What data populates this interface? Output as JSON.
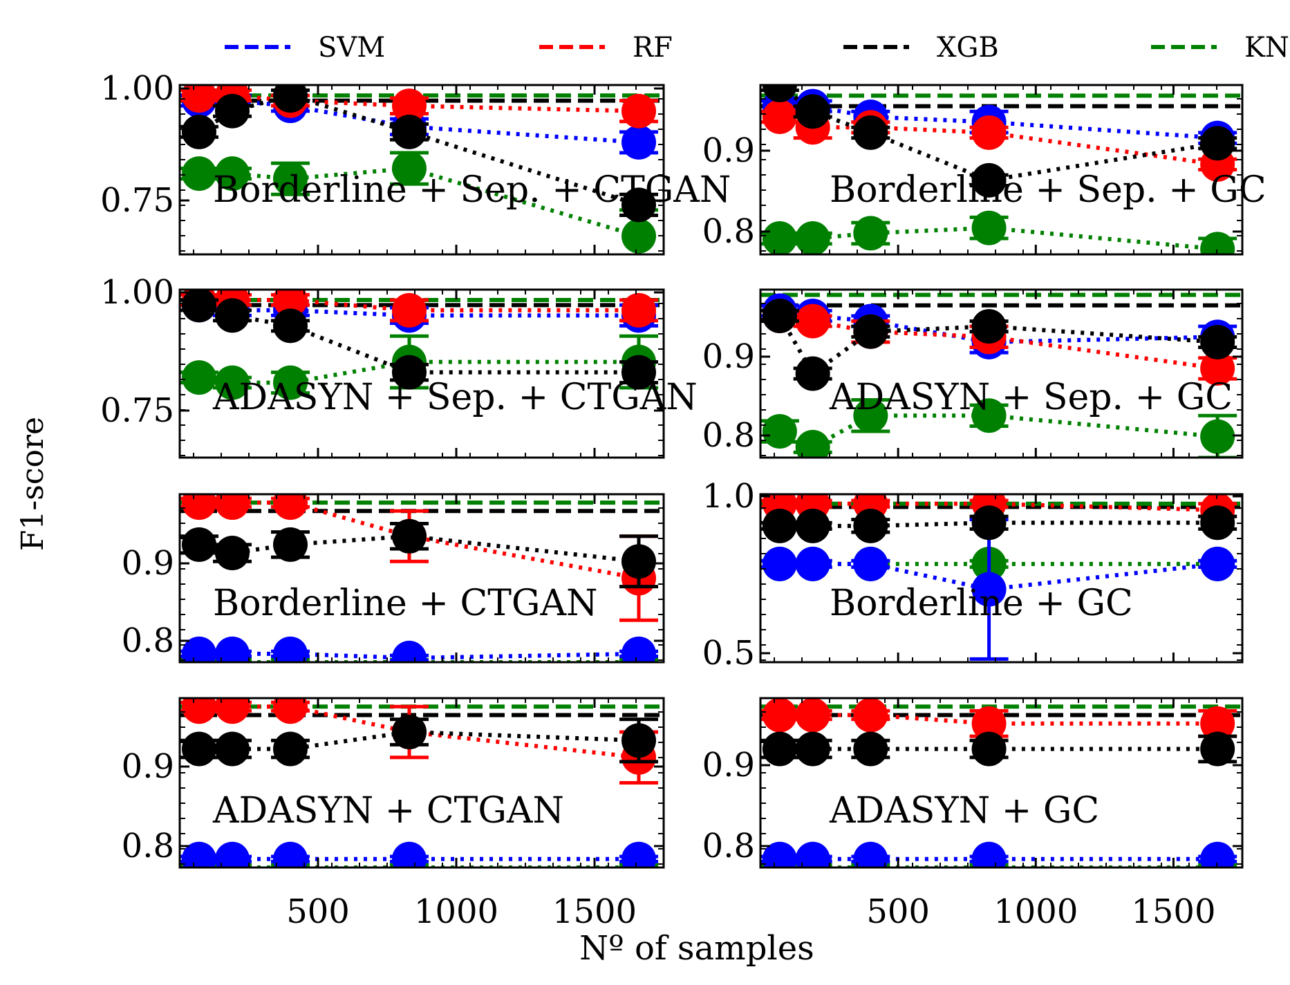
{
  "colors": {
    "SVM": "#0000ff",
    "RF": "#ff0000",
    "XGB": "#000000",
    "KNN": "#008000"
  },
  "legend": {
    "placement": "top-center",
    "items": [
      {
        "label": "SVM",
        "color": "#0000ff"
      },
      {
        "label": "RF",
        "color": "#ff0000"
      },
      {
        "label": "XGB",
        "color": "#000000"
      },
      {
        "label": "KNN",
        "color": "#008000"
      }
    ]
  },
  "ylabel": "F1-score",
  "xlabel": "Nº of samples",
  "chart_data": [
    {
      "type": "line",
      "title": "Borderline + Sep. + CTGAN",
      "xlim": [
        0,
        1750
      ],
      "ylim": [
        0.675,
        1.0
      ],
      "yticks": [
        "1.00",
        "0.75"
      ],
      "x": [
        70,
        190,
        400,
        830,
        1660
      ],
      "baselines": {
        "SVM": 0.97,
        "RF": 0.97,
        "XGB": 0.97,
        "KNN": 0.98
      },
      "series": [
        {
          "name": "SVM",
          "values": [
            0.97,
            0.97,
            0.96,
            0.92,
            0.89
          ],
          "errors": [
            0.01,
            0.01,
            0.01,
            0.015,
            0.02
          ]
        },
        {
          "name": "RF",
          "values": [
            0.98,
            0.98,
            0.97,
            0.96,
            0.95
          ],
          "errors": [
            0.01,
            0.01,
            0.01,
            0.015,
            0.02
          ]
        },
        {
          "name": "XGB",
          "values": [
            0.91,
            0.95,
            0.98,
            0.91,
            0.77
          ],
          "errors": [
            0.01,
            0.01,
            0.01,
            0.015,
            0.02
          ]
        },
        {
          "name": "KNN",
          "values": [
            0.83,
            0.83,
            0.82,
            0.84,
            0.71
          ],
          "errors": [
            0.01,
            0.01,
            0.03,
            0.03,
            0.05
          ]
        }
      ]
    },
    {
      "type": "line",
      "title": "Borderline + Sep. + GC",
      "xlim": [
        0,
        1750
      ],
      "ylim": [
        0.79,
        0.95
      ],
      "yticks": [
        "0.9",
        "0.8"
      ],
      "x": [
        70,
        190,
        400,
        830,
        1660
      ],
      "baselines": {
        "SVM": 0.93,
        "RF": 0.93,
        "XGB": 0.93,
        "KNN": 0.94
      },
      "series": [
        {
          "name": "SVM",
          "values": [
            0.93,
            0.93,
            0.92,
            0.915,
            0.9
          ],
          "errors": [
            0.005,
            0.005,
            0.005,
            0.01,
            0.005
          ]
        },
        {
          "name": "RF",
          "values": [
            0.92,
            0.91,
            0.91,
            0.905,
            0.875
          ],
          "errors": [
            0.005,
            0.01,
            0.005,
            0.005,
            0.005
          ]
        },
        {
          "name": "XGB",
          "values": [
            0.95,
            0.925,
            0.905,
            0.86,
            0.895
          ],
          "errors": [
            0.005,
            0.005,
            0.005,
            0.005,
            0.005
          ]
        },
        {
          "name": "KNN",
          "values": [
            0.805,
            0.805,
            0.81,
            0.815,
            0.795
          ],
          "errors": [
            0.005,
            0.005,
            0.01,
            0.01,
            0.01
          ]
        }
      ]
    },
    {
      "type": "line",
      "title": "ADASYN + Sep. + CTGAN",
      "xlim": [
        0,
        1750
      ],
      "ylim": [
        0.675,
        1.0
      ],
      "yticks": [
        "1.00",
        "0.75"
      ],
      "x": [
        70,
        190,
        400,
        830,
        1660
      ],
      "baselines": {
        "SVM": 0.97,
        "RF": 0.97,
        "XGB": 0.97,
        "KNN": 0.98
      },
      "series": [
        {
          "name": "SVM",
          "values": [
            0.97,
            0.96,
            0.96,
            0.95,
            0.95
          ],
          "errors": [
            0.01,
            0.01,
            0.01,
            0.015,
            0.02
          ]
        },
        {
          "name": "RF",
          "values": [
            0.98,
            0.98,
            0.98,
            0.96,
            0.96
          ],
          "errors": [
            0.01,
            0.01,
            0.01,
            0.02,
            0.02
          ]
        },
        {
          "name": "XGB",
          "values": [
            0.97,
            0.95,
            0.93,
            0.84,
            0.84
          ],
          "errors": [
            0.01,
            0.01,
            0.01,
            0.015,
            0.02
          ]
        },
        {
          "name": "KNN",
          "values": [
            0.83,
            0.82,
            0.82,
            0.86,
            0.86
          ],
          "errors": [
            0.01,
            0.01,
            0.02,
            0.05,
            0.05
          ]
        }
      ]
    },
    {
      "type": "line",
      "title": "ADASYN + Sep. + GC",
      "xlim": [
        0,
        1750
      ],
      "ylim": [
        0.79,
        0.95
      ],
      "yticks": [
        "0.9",
        "0.8"
      ],
      "x": [
        70,
        190,
        400,
        830,
        1660
      ],
      "baselines": {
        "SVM": 0.935,
        "RF": 0.935,
        "XGB": 0.935,
        "KNN": 0.945
      },
      "series": [
        {
          "name": "SVM",
          "values": [
            0.93,
            0.925,
            0.92,
            0.9,
            0.905
          ],
          "errors": [
            0.005,
            0.005,
            0.005,
            0.01,
            0.01
          ]
        },
        {
          "name": "RF",
          "values": [
            0.925,
            0.92,
            0.91,
            0.905,
            0.875
          ],
          "errors": [
            0.005,
            0.005,
            0.01,
            0.01,
            0.01
          ]
        },
        {
          "name": "XGB",
          "values": [
            0.925,
            0.87,
            0.91,
            0.915,
            0.9
          ],
          "errors": [
            0.005,
            0.005,
            0.005,
            0.005,
            0.005
          ]
        },
        {
          "name": "KNN",
          "values": [
            0.815,
            0.8,
            0.83,
            0.83,
            0.81
          ],
          "errors": [
            0.01,
            0.005,
            0.015,
            0.01,
            0.02
          ]
        }
      ]
    },
    {
      "type": "line",
      "title": "Borderline + CTGAN",
      "xlim": [
        0,
        1750
      ],
      "ylim": [
        0.78,
        0.98
      ],
      "yticks": [
        "0.9",
        "0.8"
      ],
      "x": [
        70,
        190,
        400,
        830,
        1660
      ],
      "baselines": {
        "SVM": 0.96,
        "RF": 0.96,
        "XGB": 0.96,
        "KNN": 0.97
      },
      "series": [
        {
          "name": "SVM",
          "values": [
            0.79,
            0.79,
            0.79,
            0.785,
            0.79
          ],
          "errors": [
            0.003,
            0.003,
            0.003,
            0.003,
            0.003
          ]
        },
        {
          "name": "RF",
          "values": [
            0.97,
            0.97,
            0.97,
            0.93,
            0.88
          ],
          "errors": [
            0.005,
            0.005,
            0.005,
            0.03,
            0.05
          ]
        },
        {
          "name": "XGB",
          "values": [
            0.92,
            0.91,
            0.92,
            0.93,
            0.9
          ],
          "errors": [
            0.01,
            0.01,
            0.015,
            0.015,
            0.03
          ]
        },
        {
          "name": "KNN",
          "values": [
            0.78,
            0.78,
            0.78,
            0.78,
            0.78
          ],
          "errors": [
            0.003,
            0.003,
            0.003,
            0.003,
            0.003
          ]
        }
      ]
    },
    {
      "type": "line",
      "title": "Borderline + GC",
      "xlim": [
        0,
        1750
      ],
      "ylim": [
        0.47,
        1.0
      ],
      "yticks": [
        "1.0",
        "0.5"
      ],
      "x": [
        70,
        190,
        400,
        830,
        1660
      ],
      "baselines": {
        "SVM": 0.95,
        "RF": 0.96,
        "XGB": 0.96,
        "KNN": 0.97
      },
      "series": [
        {
          "name": "SVM",
          "values": [
            0.78,
            0.78,
            0.78,
            0.7,
            0.78
          ],
          "errors": [
            0.01,
            0.01,
            0.01,
            0.22,
            0.01
          ]
        },
        {
          "name": "RF",
          "values": [
            0.97,
            0.97,
            0.97,
            0.97,
            0.95
          ],
          "errors": [
            0.01,
            0.01,
            0.01,
            0.01,
            0.02
          ]
        },
        {
          "name": "XGB",
          "values": [
            0.9,
            0.9,
            0.9,
            0.91,
            0.91
          ],
          "errors": [
            0.01,
            0.01,
            0.02,
            0.02,
            0.02
          ]
        },
        {
          "name": "KNN",
          "values": [
            0.78,
            0.78,
            0.78,
            0.78,
            0.78
          ],
          "errors": [
            0.01,
            0.01,
            0.01,
            0.01,
            0.01
          ]
        }
      ]
    },
    {
      "type": "line",
      "title": "ADASYN + CTGAN",
      "xlim": [
        0,
        1750
      ],
      "ylim": [
        0.78,
        0.98
      ],
      "yticks": [
        "0.9",
        "0.8"
      ],
      "x": [
        70,
        190,
        400,
        830,
        1660
      ],
      "baselines": {
        "SVM": 0.96,
        "RF": 0.96,
        "XGB": 0.96,
        "KNN": 0.97
      },
      "series": [
        {
          "name": "SVM",
          "values": [
            0.79,
            0.79,
            0.79,
            0.79,
            0.79
          ],
          "errors": [
            0.003,
            0.003,
            0.003,
            0.003,
            0.003
          ]
        },
        {
          "name": "RF",
          "values": [
            0.97,
            0.97,
            0.97,
            0.94,
            0.91
          ],
          "errors": [
            0.005,
            0.005,
            0.005,
            0.03,
            0.03
          ]
        },
        {
          "name": "XGB",
          "values": [
            0.92,
            0.92,
            0.92,
            0.94,
            0.93
          ],
          "errors": [
            0.01,
            0.01,
            0.01,
            0.015,
            0.025
          ]
        },
        {
          "name": "KNN",
          "values": [
            0.78,
            0.78,
            0.78,
            0.78,
            0.78
          ],
          "errors": [
            0.003,
            0.003,
            0.003,
            0.003,
            0.003
          ]
        }
      ]
    },
    {
      "type": "line",
      "title": "ADASYN + GC",
      "xlim": [
        0,
        1750
      ],
      "ylim": [
        0.78,
        0.98
      ],
      "yticks": [
        "0.9",
        "0.8"
      ],
      "x": [
        70,
        190,
        400,
        830,
        1660
      ],
      "baselines": {
        "SVM": 0.96,
        "RF": 0.96,
        "XGB": 0.96,
        "KNN": 0.97
      },
      "series": [
        {
          "name": "SVM",
          "values": [
            0.79,
            0.79,
            0.79,
            0.79,
            0.79
          ],
          "errors": [
            0.003,
            0.003,
            0.003,
            0.003,
            0.003
          ]
        },
        {
          "name": "RF",
          "values": [
            0.96,
            0.96,
            0.96,
            0.95,
            0.95
          ],
          "errors": [
            0.005,
            0.005,
            0.005,
            0.015,
            0.015
          ]
        },
        {
          "name": "XGB",
          "values": [
            0.92,
            0.92,
            0.92,
            0.92,
            0.92
          ],
          "errors": [
            0.01,
            0.01,
            0.01,
            0.01,
            0.015
          ]
        },
        {
          "name": "KNN",
          "values": [
            0.78,
            0.78,
            0.78,
            0.78,
            0.78
          ],
          "errors": [
            0.003,
            0.003,
            0.003,
            0.003,
            0.003
          ]
        }
      ]
    }
  ],
  "xticks": [
    500,
    1000,
    1500
  ]
}
